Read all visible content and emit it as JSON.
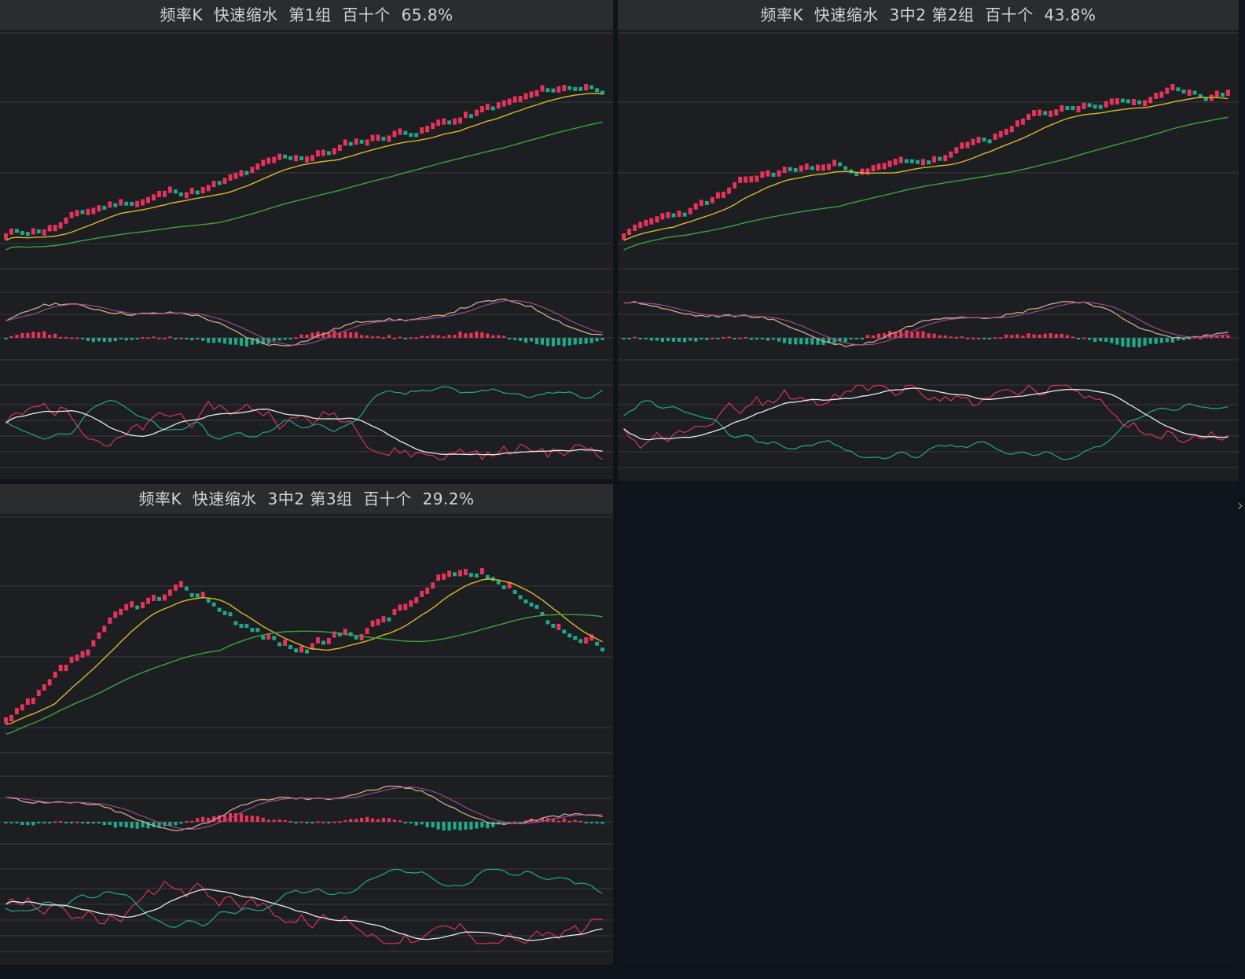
{
  "panels": [
    {
      "title": "频率K  快速缩水  第1组  百十个  65.8%",
      "seed": 11,
      "trend": 0.9,
      "amp": 0.05
    },
    {
      "title": "频率K  快速缩水  3中2 第2组  百十个  43.8%",
      "seed": 23,
      "trend": 0.75,
      "amp": 0.12
    },
    {
      "title": "频率K  快速缩水  3中2 第3组  百十个  29.2%",
      "seed": 37,
      "trend": 0.15,
      "amp": 0.28
    }
  ],
  "colors": {
    "up": "#e8335a",
    "down": "#1fa98a",
    "ma_short": "#d8b92a",
    "ma_long": "#3da23f",
    "line_tan": "#c8ad8c",
    "line_purple": "#a0508c",
    "line_white": "#e8e8e8",
    "line_red": "#d8335a",
    "line_green": "#1fa98a",
    "grid": "#3a3b3f"
  },
  "right_arrow_icon": "›"
}
